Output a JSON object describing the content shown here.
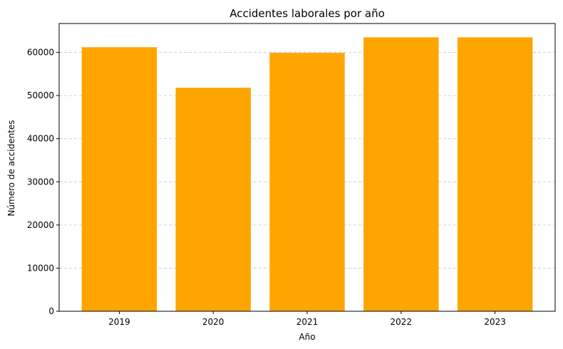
{
  "chart_data": {
    "type": "bar",
    "title": "Accidentes laborales por año",
    "xlabel": "Año",
    "ylabel": "Número de accidentes",
    "categories": [
      "2019",
      "2020",
      "2021",
      "2022",
      "2023"
    ],
    "values": [
      61200,
      51800,
      59900,
      63500,
      63500
    ],
    "ylim": [
      0,
      66700
    ],
    "yticks": [
      0,
      10000,
      20000,
      30000,
      40000,
      50000,
      60000
    ],
    "grid": "y-dashed",
    "legend": "none",
    "colors": {
      "bar": "#FFA500",
      "grid": "#c8c8c8",
      "axis": "#000000"
    }
  }
}
